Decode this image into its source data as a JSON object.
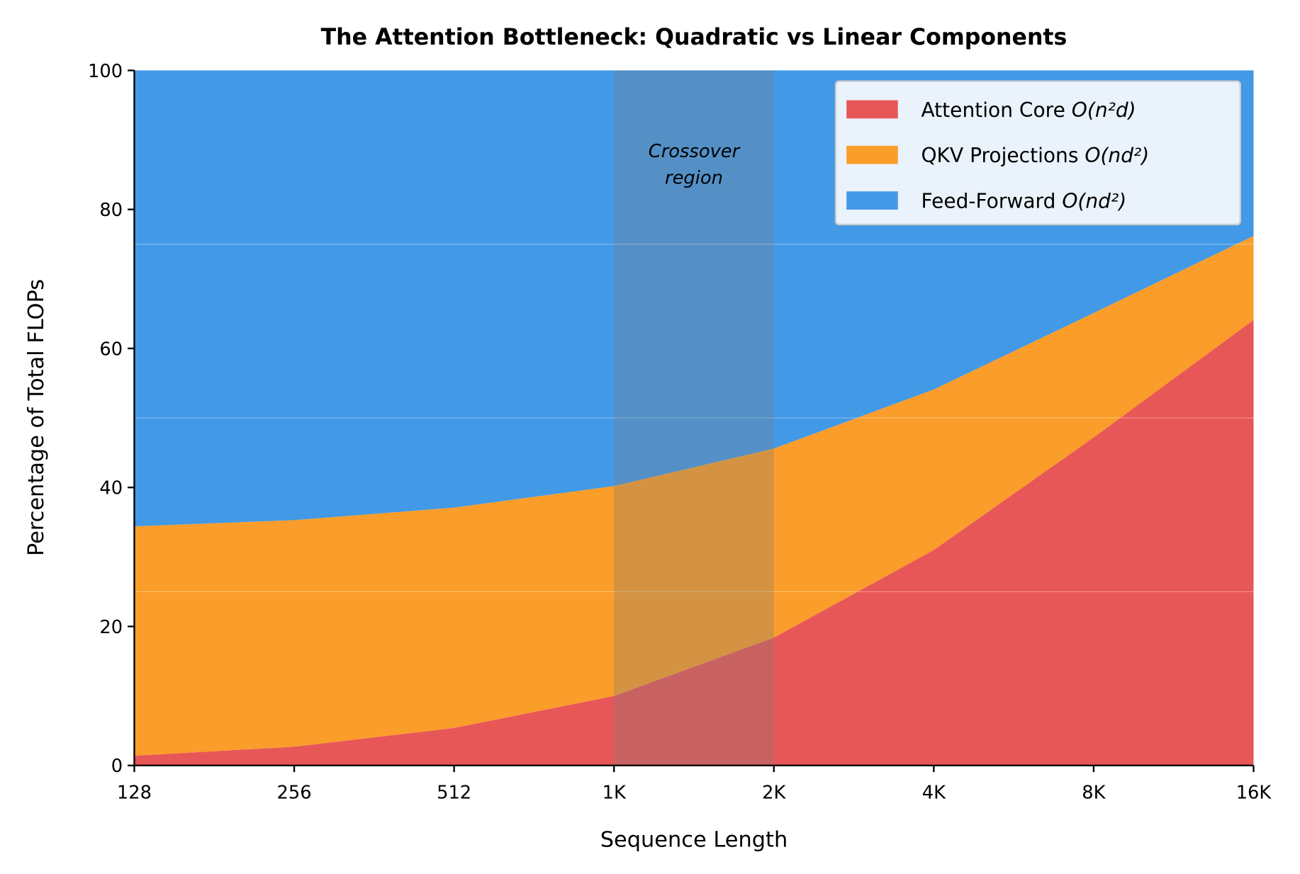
{
  "chart_data": {
    "type": "area",
    "stacked": true,
    "title": "The Attention Bottleneck: Quadratic vs Linear Components",
    "xlabel": "Sequence Length",
    "ylabel": "Percentage of Total FLOPs",
    "categories": [
      "128",
      "256",
      "512",
      "1K",
      "2K",
      "4K",
      "8K",
      "16K"
    ],
    "ylim": [
      0,
      100
    ],
    "yticks": [
      0,
      20,
      40,
      60,
      80,
      100
    ],
    "grid_y": [
      25,
      50,
      75
    ],
    "series": [
      {
        "name": "Attention Core",
        "formula": "O(n²d)",
        "color": "#E85757",
        "values": [
          1.4,
          2.7,
          5.4,
          10.0,
          18.4,
          31.0,
          47.2,
          64.1
        ]
      },
      {
        "name": "QKV Projections",
        "formula": "O(nd²)",
        "color": "#FA9D2A",
        "values": [
          33.0,
          32.6,
          31.7,
          30.2,
          27.2,
          23.1,
          17.9,
          12.1
        ]
      },
      {
        "name": "Feed-Forward",
        "formula": "O(nd²)",
        "color": "#4299E6",
        "values": [
          65.6,
          64.7,
          62.9,
          59.8,
          54.4,
          45.9,
          34.9,
          23.8
        ]
      }
    ],
    "annotation": {
      "text_line1": "Crossover",
      "text_line2": "region",
      "x_from": "1K",
      "x_to": "2K"
    },
    "legend_placement": "top-right"
  }
}
